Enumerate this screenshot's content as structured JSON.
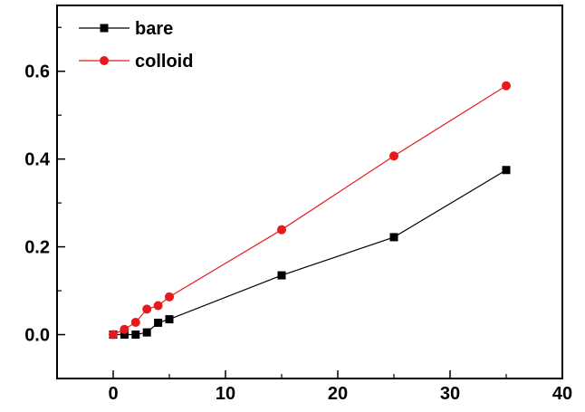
{
  "chart_data": {
    "type": "line",
    "title": "",
    "xlabel": "",
    "ylabel": "",
    "xlim": [
      -5,
      40
    ],
    "ylim": [
      -0.1,
      0.75
    ],
    "x_ticks": [
      0,
      10,
      20,
      30,
      40
    ],
    "y_ticks": [
      0.0,
      0.2,
      0.4,
      0.6
    ],
    "x_tick_labels": [
      "0",
      "10",
      "20",
      "30",
      "40"
    ],
    "y_tick_labels": [
      "0.0",
      "0.2",
      "0.4",
      "0.6"
    ],
    "grid": false,
    "legend_position": "top-left",
    "series": [
      {
        "name": "bare",
        "color": "#000000",
        "marker": "square",
        "x": [
          0,
          1,
          2,
          3,
          4,
          5,
          15,
          25,
          35
        ],
        "y": [
          0.0,
          0.0,
          0.0,
          0.005,
          0.027,
          0.035,
          0.135,
          0.222,
          0.375
        ]
      },
      {
        "name": "colloid",
        "color": "#e8191c",
        "marker": "circle",
        "x": [
          0,
          1,
          2,
          3,
          4,
          5,
          15,
          25,
          35
        ],
        "y": [
          0.0,
          0.012,
          0.028,
          0.058,
          0.066,
          0.086,
          0.239,
          0.407,
          0.567
        ]
      }
    ]
  }
}
